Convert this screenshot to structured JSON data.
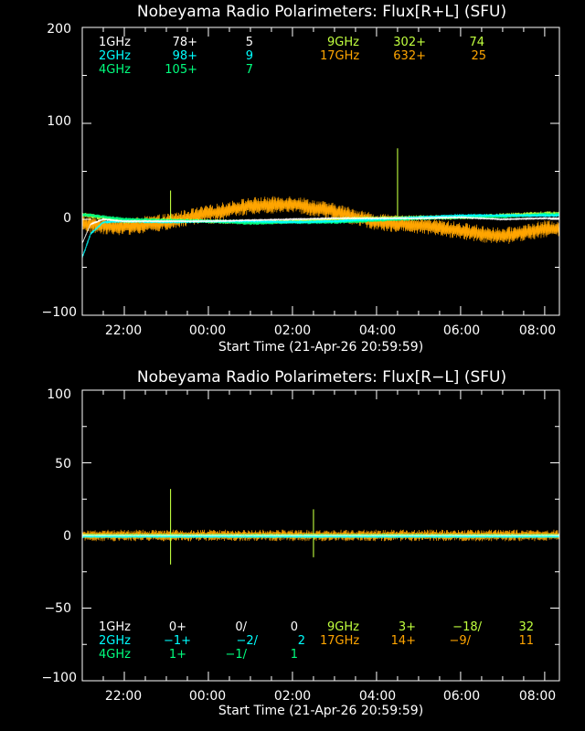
{
  "chart_data": [
    {
      "type": "line",
      "title": "Nobeyama Radio Polarimeters: Flux[R+L] (SFU)",
      "xlabel": "Start Time (21-Apr-26 20:59:59)",
      "ylim": [
        -100,
        200
      ],
      "y_ticks": [
        "200",
        "100",
        "0",
        "−100"
      ],
      "x_ticks": [
        "22:00",
        "00:00",
        "02:00",
        "04:00",
        "06:00",
        "08:00"
      ],
      "legend": [
        {
          "band": "1GHz",
          "base": "78+",
          "sep": "",
          "pol": "",
          "val": "5",
          "color": "#ffffff"
        },
        {
          "band": "2GHz",
          "base": "98+",
          "sep": "",
          "pol": "",
          "val": "9",
          "color": "#00ffff"
        },
        {
          "band": "4GHz",
          "base": "105+",
          "sep": "",
          "pol": "",
          "val": "7",
          "color": "#00ff7f"
        },
        {
          "band": "9GHz",
          "base": "302+",
          "sep": "",
          "pol": "",
          "val": "74",
          "color": "#c0ff3e"
        },
        {
          "band": "17GHz",
          "base": "632+",
          "sep": "",
          "pol": "",
          "val": "25",
          "color": "#ffa500"
        }
      ],
      "series": [
        {
          "band": "17GHz",
          "color": "#ffa500",
          "noise": 9,
          "trend": [
            [
              0,
              -5
            ],
            [
              1,
              -8
            ],
            [
              2,
              -3
            ],
            [
              3,
              6
            ],
            [
              4,
              14
            ],
            [
              5,
              16
            ],
            [
              6,
              8
            ],
            [
              7,
              -3
            ],
            [
              8,
              -6
            ],
            [
              9,
              -12
            ],
            [
              10,
              -18
            ],
            [
              11,
              -10
            ]
          ],
          "spikes": []
        },
        {
          "band": "9GHz",
          "color": "#c0ff3e",
          "noise": 2.5,
          "trend": [
            [
              0,
              5
            ],
            [
              1,
              -2
            ],
            [
              2,
              -1
            ],
            [
              3,
              -2
            ],
            [
              4,
              -3
            ],
            [
              5,
              -2
            ],
            [
              6,
              0
            ],
            [
              7,
              1
            ],
            [
              8,
              2
            ],
            [
              9,
              2
            ],
            [
              10,
              4
            ],
            [
              11,
              6
            ]
          ],
          "spikes": [
            [
              2.1,
              30
            ],
            [
              7.5,
              74
            ]
          ]
        },
        {
          "band": "4GHz",
          "color": "#00ff7f",
          "noise": 2,
          "trend": [
            [
              0,
              5
            ],
            [
              1,
              0
            ],
            [
              2,
              -1
            ],
            [
              3,
              -2
            ],
            [
              4,
              -4
            ],
            [
              5,
              -3
            ],
            [
              6,
              -3
            ],
            [
              7,
              -1
            ],
            [
              8,
              1
            ],
            [
              9,
              2
            ],
            [
              10,
              3
            ],
            [
              11,
              5
            ]
          ],
          "spikes": []
        },
        {
          "band": "2GHz",
          "color": "#00ffff",
          "noise": 1.5,
          "trend": [
            [
              0,
              -40
            ],
            [
              0.2,
              -15
            ],
            [
              0.5,
              -3
            ],
            [
              1,
              -2
            ],
            [
              2,
              -3
            ],
            [
              3,
              -2
            ],
            [
              4,
              -2
            ],
            [
              5,
              -3
            ],
            [
              6,
              -2
            ],
            [
              7,
              0
            ],
            [
              8,
              2
            ],
            [
              9,
              4
            ],
            [
              10,
              4
            ],
            [
              11,
              4
            ]
          ],
          "spikes": []
        },
        {
          "band": "1GHz",
          "color": "#ffffff",
          "noise": 0.8,
          "trend": [
            [
              0,
              -25
            ],
            [
              0.2,
              -5
            ],
            [
              0.5,
              0
            ],
            [
              1,
              -2
            ],
            [
              2,
              -2
            ],
            [
              3,
              -2
            ],
            [
              4,
              -1
            ],
            [
              5,
              0
            ],
            [
              6,
              1
            ],
            [
              7,
              1
            ],
            [
              8,
              1
            ],
            [
              9,
              2
            ],
            [
              10,
              0
            ],
            [
              11,
              1
            ]
          ],
          "spikes": []
        }
      ]
    },
    {
      "type": "line",
      "title": "Nobeyama Radio Polarimeters: Flux[R−L] (SFU)",
      "xlabel": "Start Time (21-Apr-26 20:59:59)",
      "ylim": [
        -100,
        100
      ],
      "y_ticks": [
        "100",
        "50",
        "0",
        "−50",
        "−100"
      ],
      "x_ticks": [
        "22:00",
        "00:00",
        "02:00",
        "04:00",
        "06:00",
        "08:00"
      ],
      "legend": [
        {
          "band": "1GHz",
          "base": "0+",
          "sep": "0/",
          "pol": "",
          "val": "0",
          "color": "#ffffff"
        },
        {
          "band": "2GHz",
          "base": "−1+",
          "sep": "−2/",
          "pol": "",
          "val": "2",
          "color": "#00ffff"
        },
        {
          "band": "4GHz",
          "base": "1+",
          "sep": "−1/",
          "pol": "",
          "val": "1",
          "color": "#00ff7f"
        },
        {
          "band": "9GHz",
          "base": "3+",
          "sep": "−18/",
          "pol": "",
          "val": "32",
          "color": "#c0ff3e"
        },
        {
          "band": "17GHz",
          "base": "14+",
          "sep": "−9/",
          "pol": "",
          "val": "11",
          "color": "#ffa500"
        }
      ],
      "series": [
        {
          "band": "17GHz",
          "color": "#ffa500",
          "noise": 4,
          "trend": [
            [
              0,
              0
            ],
            [
              11,
              0
            ]
          ],
          "spikes": []
        },
        {
          "band": "9GHz",
          "color": "#c0ff3e",
          "noise": 1.2,
          "trend": [
            [
              0,
              0
            ],
            [
              11,
              0
            ]
          ],
          "spikes": [
            [
              2.1,
              32
            ],
            [
              2.1,
              -20
            ],
            [
              5.5,
              18
            ],
            [
              5.5,
              -15
            ]
          ]
        },
        {
          "band": "4GHz",
          "color": "#00ff7f",
          "noise": 0.6,
          "trend": [
            [
              0,
              0
            ],
            [
              11,
              0
            ]
          ],
          "spikes": []
        },
        {
          "band": "2GHz",
          "color": "#00ffff",
          "noise": 0.4,
          "trend": [
            [
              0,
              -1
            ],
            [
              11,
              -1
            ]
          ],
          "spikes": []
        },
        {
          "band": "1GHz",
          "color": "#ffffff",
          "noise": 0.2,
          "trend": [
            [
              0,
              0
            ],
            [
              11,
              0
            ]
          ],
          "spikes": []
        }
      ]
    }
  ]
}
